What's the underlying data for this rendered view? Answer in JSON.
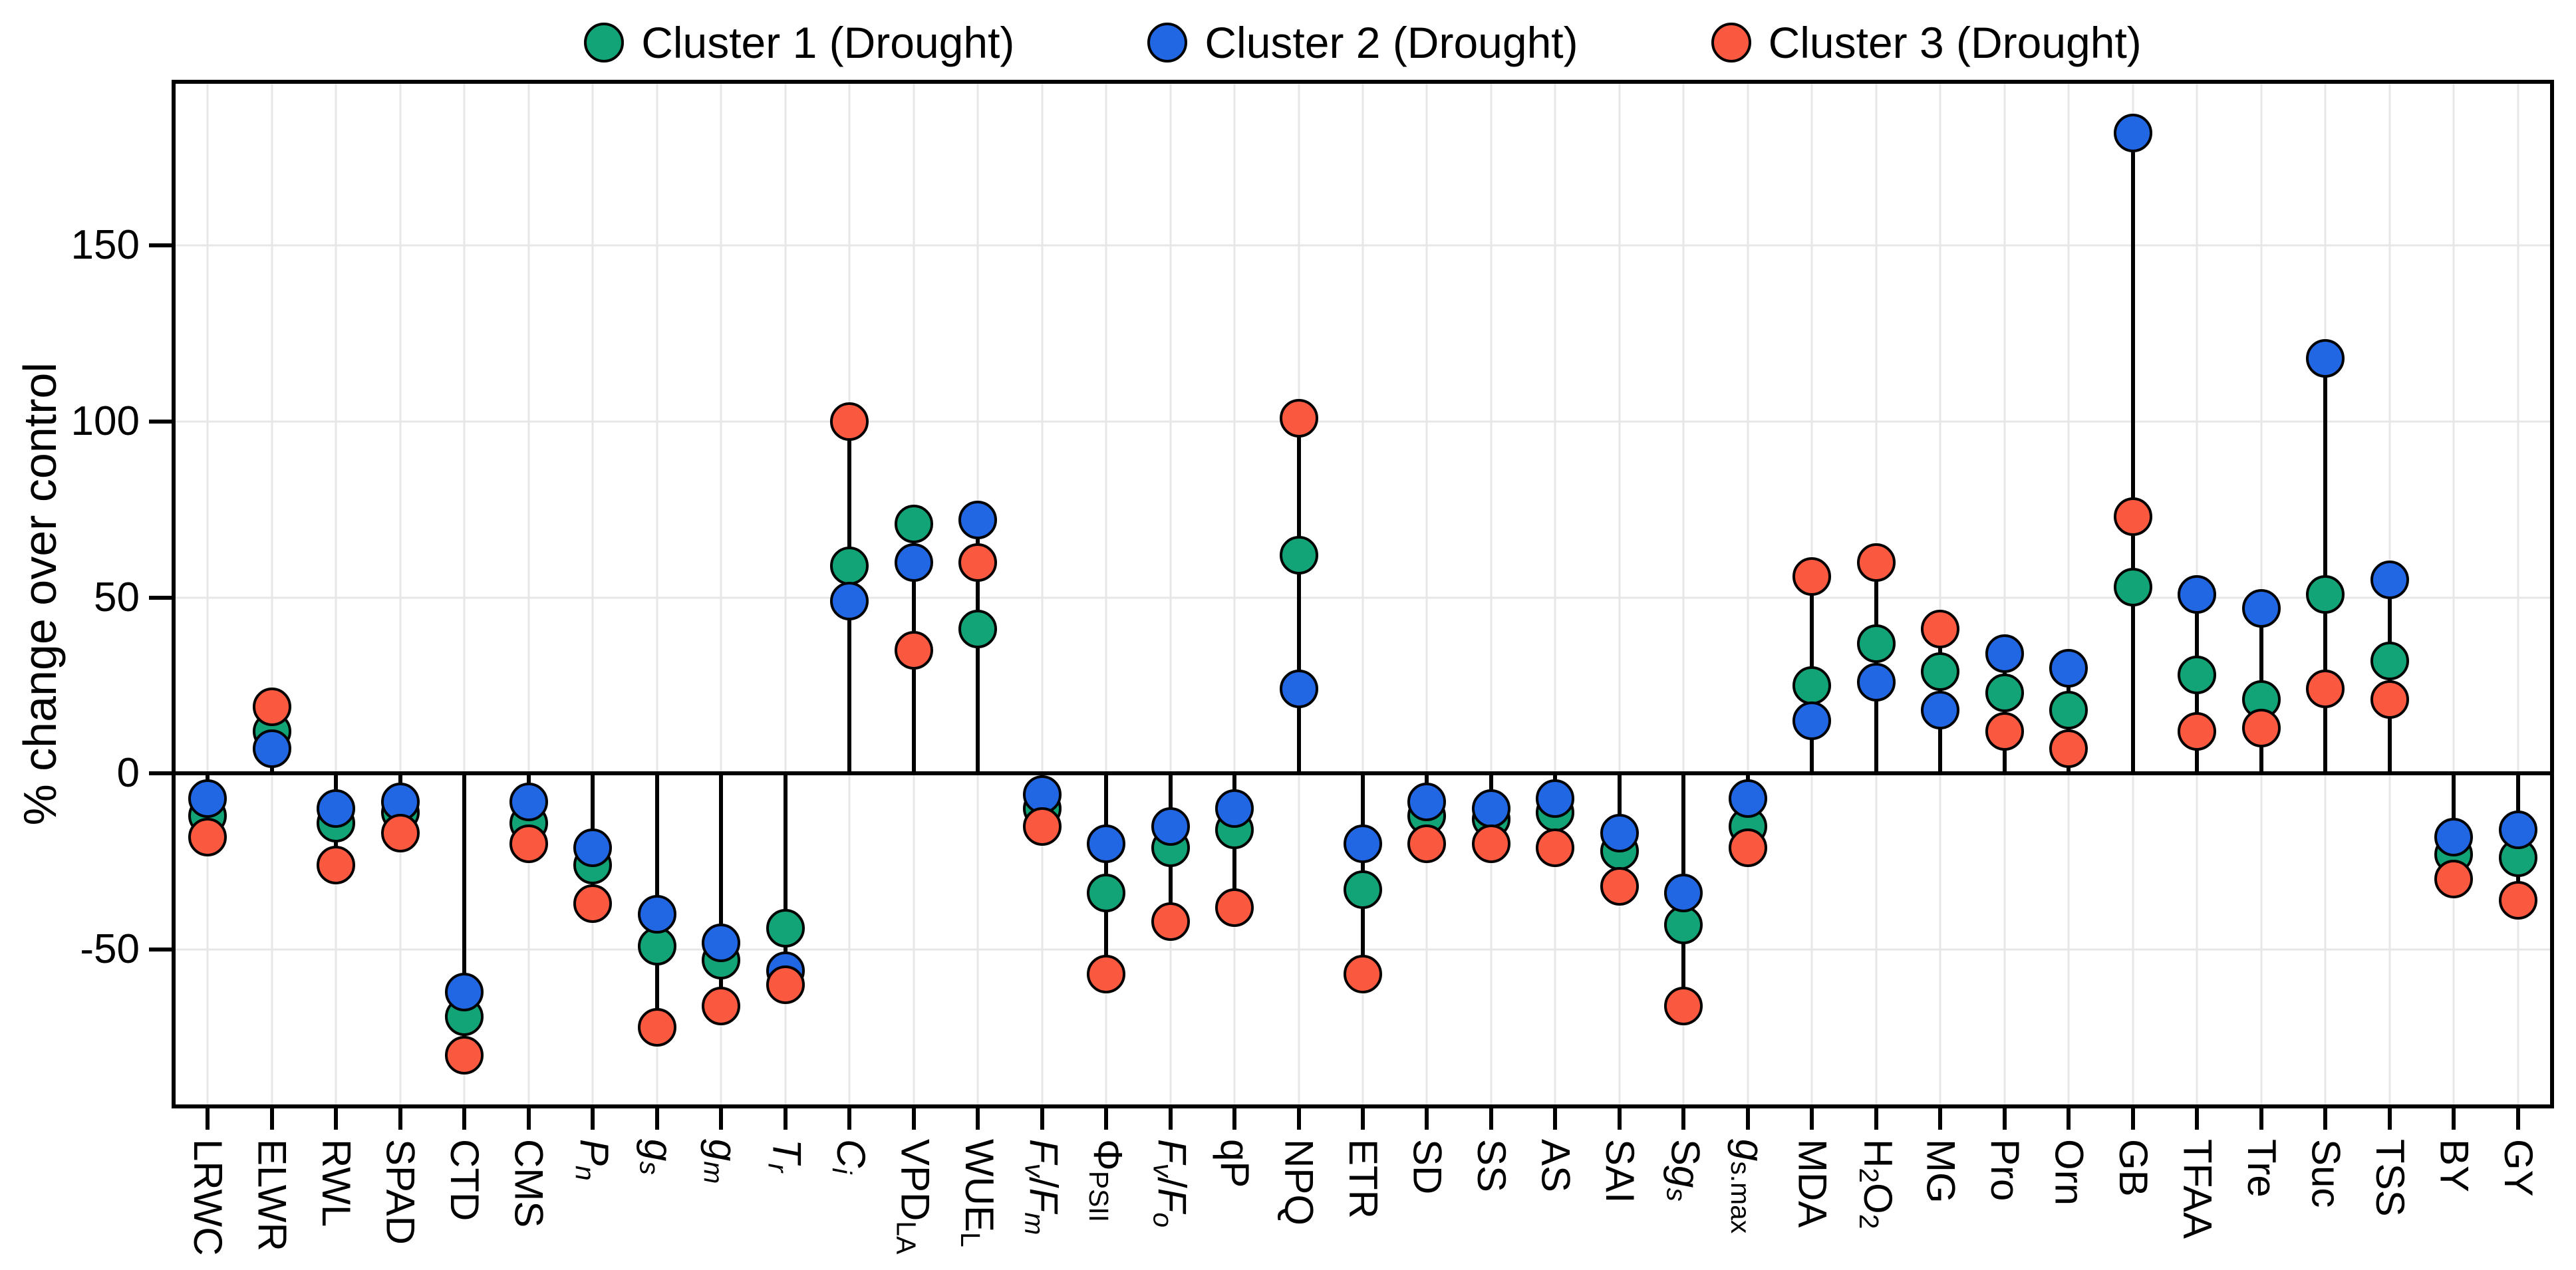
{
  "legend": {
    "items": [
      {
        "label": "Cluster 1 (Drought)",
        "color": "#12a377"
      },
      {
        "label": "Cluster 2 (Drought)",
        "color": "#2166e3"
      },
      {
        "label": "Cluster 3 (Drought)",
        "color": "#fa5940"
      }
    ]
  },
  "y_axis": {
    "title": "% change over control",
    "ticks": [
      {
        "label": "150",
        "value": 150
      },
      {
        "label": "100",
        "value": 100
      },
      {
        "label": "50",
        "value": 50
      },
      {
        "label": "0",
        "value": 0
      },
      {
        "label": "-50",
        "value": -50
      }
    ]
  },
  "chart_data": {
    "type": "lollipop-dot",
    "title": "",
    "xlabel": "",
    "ylabel": "% change over control",
    "ylim": [
      -94,
      196
    ],
    "grid": "on",
    "zero_line": true,
    "legend_position": "top",
    "gridline_values": [
      150,
      100,
      50,
      -50
    ],
    "categories": [
      "LRWC",
      "ELWR",
      "RWL",
      "SPAD",
      "CTD",
      "CMS",
      "Pn",
      "gs",
      "gm",
      "Tr",
      "Ci",
      "VPDLA",
      "WUEL",
      "Fv/Fm",
      "PhiPSII",
      "Fv/Fo",
      "qP",
      "NPQ",
      "ETR",
      "SD",
      "SS",
      "AS",
      "SAI",
      "Sgs",
      "gs.max",
      "MDA",
      "H2O2",
      "MG",
      "Pro",
      "Orn",
      "GB",
      "TFAA",
      "Tre",
      "Suc",
      "TSS",
      "BY",
      "GY"
    ],
    "category_labels_markup": [
      "LRWC",
      "ELWR",
      "RWL",
      "SPAD",
      "CTD",
      "CMS",
      "*P*_{*n*}",
      "*g*_{*s*}",
      "*g*_{*m*}",
      "*T*_{*r*}",
      "*C*_{*i*}",
      "VPD_{LA}",
      "WUE_{L}",
      "*F*_{*v*}/*F*_{*m*}",
      "Φ_{PSII}",
      "*F*_{*v*}/*F*_{*o*}",
      "qP",
      "NPQ",
      "ETR",
      "SD",
      "SS",
      "AS",
      "SAI",
      "S*g*_{*s*}",
      "*g*_{s.max}",
      "MDA",
      "H_{2}O_{2}",
      "MG",
      "Pro",
      "Orn",
      "GB",
      "TFAA",
      "Tre",
      "Suc",
      "TSS",
      "BY",
      "GY"
    ],
    "series": [
      {
        "name": "Cluster 1 (Drought)",
        "color": "#12a377",
        "values": [
          -12,
          12,
          -14,
          -11,
          -69,
          -14,
          -26,
          -49,
          -53,
          -44,
          59,
          71,
          41,
          -10,
          -34,
          -21,
          -16,
          62,
          -33,
          -12,
          -13,
          -11,
          -22,
          -43,
          -15,
          25,
          37,
          29,
          23,
          18,
          53,
          28,
          21,
          51,
          32,
          -23,
          -24
        ]
      },
      {
        "name": "Cluster 2 (Drought)",
        "color": "#2166e3",
        "values": [
          -7,
          7,
          -10,
          -8,
          -62,
          -8,
          -21,
          -40,
          -48,
          -56,
          49,
          60,
          72,
          -6,
          -20,
          -15,
          -10,
          24,
          -20,
          -8,
          -10,
          -7,
          -17,
          -34,
          -7,
          15,
          26,
          18,
          34,
          30,
          182,
          51,
          47,
          118,
          55,
          -18,
          -16
        ]
      },
      {
        "name": "Cluster 3 (Drought)",
        "color": "#fa5940",
        "values": [
          -18,
          19,
          -26,
          -17,
          -80,
          -20,
          -37,
          -72,
          -66,
          -60,
          100,
          35,
          60,
          -15,
          -57,
          -42,
          -38,
          101,
          -57,
          -20,
          -20,
          -21,
          -32,
          -66,
          -21,
          56,
          60,
          41,
          12,
          7,
          73,
          12,
          13,
          24,
          21,
          -30,
          -36
        ]
      }
    ]
  }
}
